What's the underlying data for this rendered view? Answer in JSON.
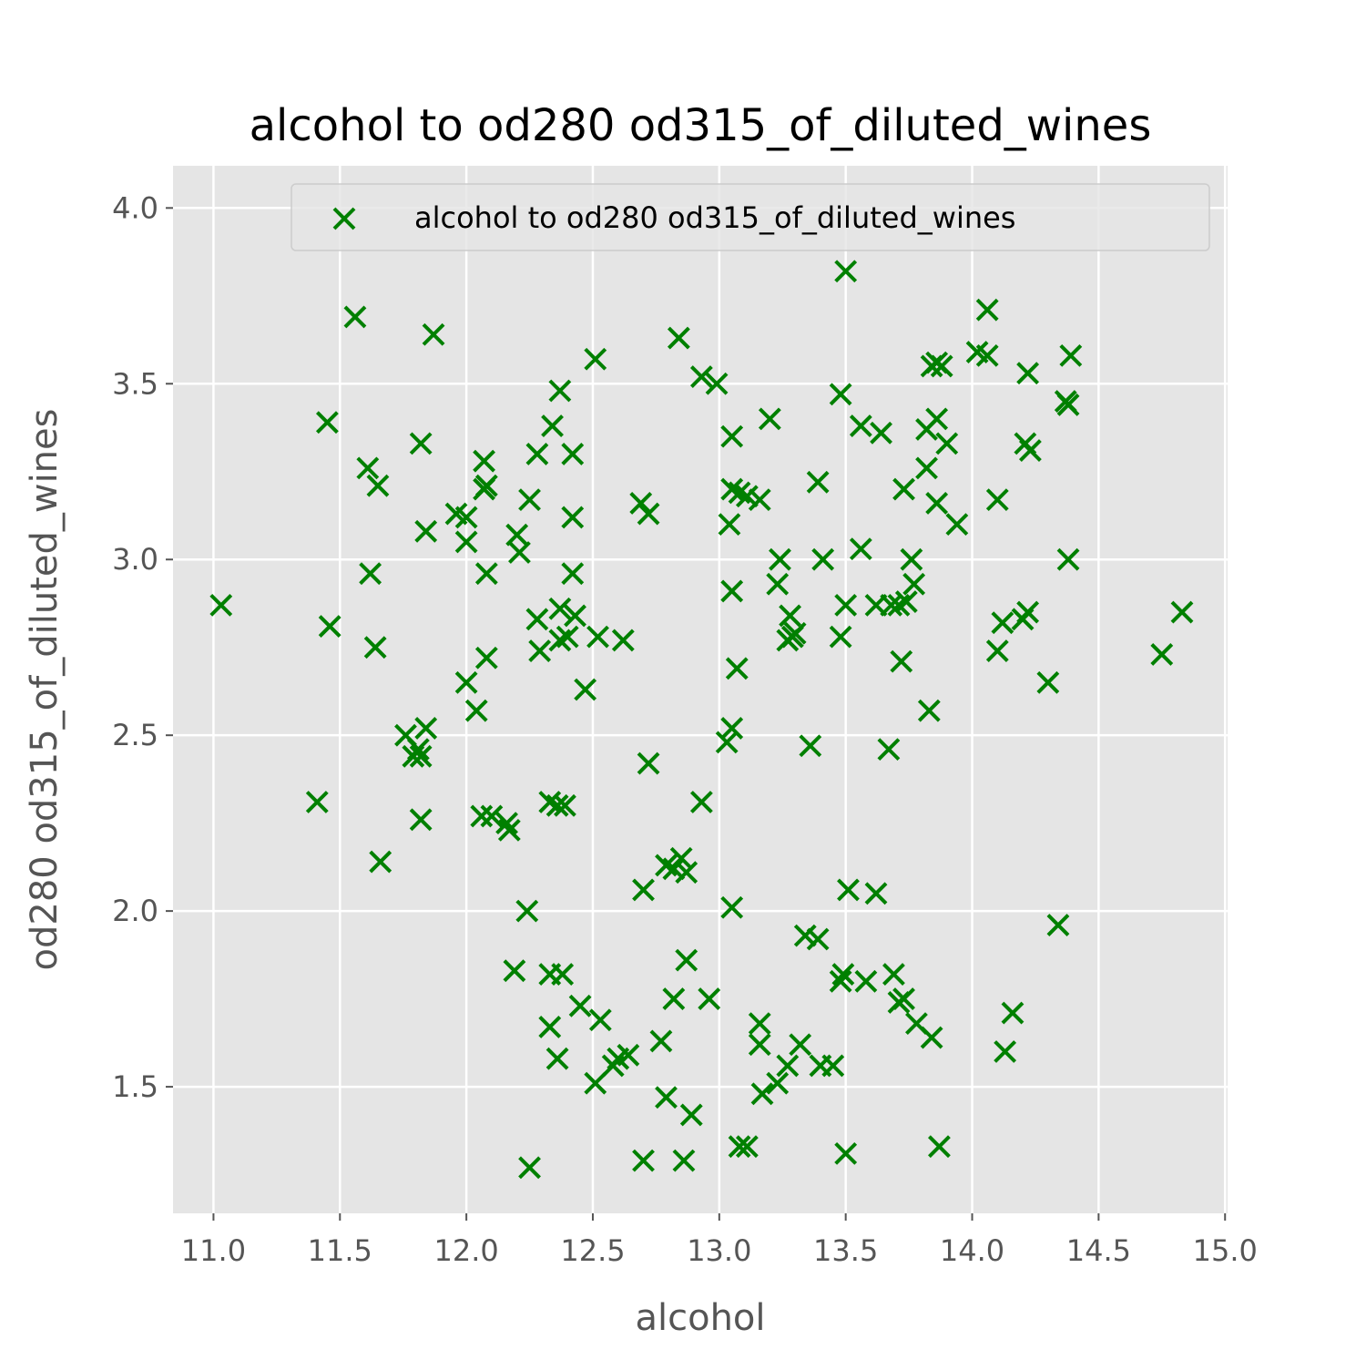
{
  "chart_data": {
    "type": "scatter",
    "title": "alcohol to od280 od315_of_diluted_wines",
    "xlabel": "alcohol",
    "ylabel": "od280 od315_of_diluted_wines",
    "xlim": [
      10.84,
      15.01
    ],
    "ylim": [
      1.14,
      4.12
    ],
    "x_ticks": [
      11.0,
      11.5,
      12.0,
      12.5,
      13.0,
      13.5,
      14.0,
      14.5,
      15.0
    ],
    "x_tick_labels": [
      "11.0",
      "11.5",
      "12.0",
      "12.5",
      "13.0",
      "13.5",
      "14.0",
      "14.5",
      "15.0"
    ],
    "y_ticks": [
      1.5,
      2.0,
      2.5,
      3.0,
      3.5,
      4.0
    ],
    "y_tick_labels": [
      "1.5",
      "2.0",
      "2.5",
      "3.0",
      "3.5",
      "4.0"
    ],
    "grid": true,
    "background": "#e5e5e5",
    "marker": "x",
    "legend": {
      "position": "upper right"
    },
    "series": [
      {
        "name": "alcohol to od280 od315_of_diluted_wines",
        "color": "#008000",
        "points": [
          [
            11.03,
            2.87
          ],
          [
            11.41,
            2.31
          ],
          [
            11.45,
            3.39
          ],
          [
            11.46,
            2.81
          ],
          [
            11.56,
            3.69
          ],
          [
            11.61,
            3.26
          ],
          [
            11.62,
            2.96
          ],
          [
            11.64,
            2.75
          ],
          [
            11.65,
            3.21
          ],
          [
            11.66,
            2.14
          ],
          [
            11.76,
            2.5
          ],
          [
            11.79,
            2.44
          ],
          [
            11.81,
            2.46
          ],
          [
            11.82,
            2.44
          ],
          [
            11.82,
            2.26
          ],
          [
            11.82,
            3.33
          ],
          [
            11.84,
            2.52
          ],
          [
            11.84,
            3.08
          ],
          [
            11.87,
            3.64
          ],
          [
            11.96,
            3.13
          ],
          [
            12.0,
            3.12
          ],
          [
            12.0,
            3.05
          ],
          [
            12.0,
            2.65
          ],
          [
            12.04,
            2.57
          ],
          [
            12.06,
            2.27
          ],
          [
            12.07,
            3.2
          ],
          [
            12.07,
            3.28
          ],
          [
            12.08,
            2.96
          ],
          [
            12.08,
            2.72
          ],
          [
            12.08,
            3.21
          ],
          [
            12.1,
            2.27
          ],
          [
            12.16,
            2.25
          ],
          [
            12.17,
            2.23
          ],
          [
            12.2,
            3.07
          ],
          [
            12.21,
            3.02
          ],
          [
            12.19,
            1.83
          ],
          [
            12.24,
            2.0
          ],
          [
            12.25,
            3.17
          ],
          [
            12.25,
            1.27
          ],
          [
            12.28,
            2.83
          ],
          [
            12.28,
            3.3
          ],
          [
            12.29,
            2.74
          ],
          [
            12.33,
            1.82
          ],
          [
            12.33,
            1.67
          ],
          [
            12.33,
            2.31
          ],
          [
            12.34,
            3.38
          ],
          [
            12.36,
            2.3
          ],
          [
            12.36,
            1.58
          ],
          [
            12.37,
            3.48
          ],
          [
            12.37,
            2.86
          ],
          [
            12.37,
            2.77
          ],
          [
            12.38,
            1.82
          ],
          [
            12.39,
            2.3
          ],
          [
            12.4,
            2.78
          ],
          [
            12.42,
            3.3
          ],
          [
            12.42,
            3.12
          ],
          [
            12.42,
            2.96
          ],
          [
            12.43,
            2.84
          ],
          [
            12.45,
            1.73
          ],
          [
            12.47,
            2.63
          ],
          [
            12.51,
            3.57
          ],
          [
            12.51,
            1.51
          ],
          [
            12.52,
            2.78
          ],
          [
            12.53,
            1.69
          ],
          [
            12.58,
            1.56
          ],
          [
            12.6,
            1.58
          ],
          [
            12.62,
            2.77
          ],
          [
            12.64,
            1.59
          ],
          [
            12.69,
            3.16
          ],
          [
            12.7,
            1.29
          ],
          [
            12.7,
            2.06
          ],
          [
            12.72,
            3.13
          ],
          [
            12.72,
            2.42
          ],
          [
            12.77,
            1.63
          ],
          [
            12.79,
            2.13
          ],
          [
            12.79,
            1.47
          ],
          [
            12.82,
            1.75
          ],
          [
            12.82,
            2.12
          ],
          [
            12.84,
            3.63
          ],
          [
            12.85,
            2.15
          ],
          [
            12.86,
            1.29
          ],
          [
            12.87,
            1.86
          ],
          [
            12.87,
            2.11
          ],
          [
            12.89,
            1.42
          ],
          [
            12.93,
            3.52
          ],
          [
            12.93,
            2.31
          ],
          [
            12.96,
            1.75
          ],
          [
            12.99,
            3.5
          ],
          [
            13.03,
            2.48
          ],
          [
            13.04,
            3.1
          ],
          [
            13.05,
            2.01
          ],
          [
            13.05,
            3.35
          ],
          [
            13.05,
            2.52
          ],
          [
            13.05,
            2.91
          ],
          [
            13.05,
            3.2
          ],
          [
            13.07,
            2.69
          ],
          [
            13.08,
            3.19
          ],
          [
            13.08,
            1.33
          ],
          [
            13.11,
            1.33
          ],
          [
            13.11,
            3.18
          ],
          [
            13.16,
            3.17
          ],
          [
            13.16,
            1.68
          ],
          [
            13.16,
            1.62
          ],
          [
            13.17,
            1.48
          ],
          [
            13.2,
            3.4
          ],
          [
            13.23,
            1.51
          ],
          [
            13.23,
            2.93
          ],
          [
            13.24,
            3.0
          ],
          [
            13.27,
            1.56
          ],
          [
            13.27,
            2.77
          ],
          [
            13.28,
            2.84
          ],
          [
            13.29,
            2.78
          ],
          [
            13.3,
            2.79
          ],
          [
            13.32,
            1.62
          ],
          [
            13.34,
            1.93
          ],
          [
            13.36,
            2.47
          ],
          [
            13.39,
            3.22
          ],
          [
            13.39,
            1.92
          ],
          [
            13.4,
            1.56
          ],
          [
            13.41,
            3.0
          ],
          [
            13.45,
            1.56
          ],
          [
            13.48,
            1.8
          ],
          [
            13.48,
            3.47
          ],
          [
            13.48,
            2.78
          ],
          [
            13.49,
            1.82
          ],
          [
            13.5,
            3.82
          ],
          [
            13.5,
            1.31
          ],
          [
            13.5,
            2.87
          ],
          [
            13.51,
            2.06
          ],
          [
            13.56,
            3.38
          ],
          [
            13.56,
            3.03
          ],
          [
            13.58,
            1.8
          ],
          [
            13.62,
            2.87
          ],
          [
            13.62,
            2.05
          ],
          [
            13.64,
            3.36
          ],
          [
            13.67,
            2.46
          ],
          [
            13.68,
            2.87
          ],
          [
            13.69,
            1.82
          ],
          [
            13.71,
            2.87
          ],
          [
            13.71,
            1.74
          ],
          [
            13.72,
            2.71
          ],
          [
            13.73,
            1.75
          ],
          [
            13.73,
            3.2
          ],
          [
            13.74,
            2.88
          ],
          [
            13.76,
            3.0
          ],
          [
            13.77,
            2.93
          ],
          [
            13.78,
            1.68
          ],
          [
            13.82,
            3.26
          ],
          [
            13.82,
            3.37
          ],
          [
            13.83,
            2.57
          ],
          [
            13.84,
            1.64
          ],
          [
            13.84,
            3.55
          ],
          [
            13.86,
            3.56
          ],
          [
            13.86,
            3.16
          ],
          [
            13.86,
            3.4
          ],
          [
            13.87,
            1.33
          ],
          [
            13.88,
            3.55
          ],
          [
            13.9,
            3.33
          ],
          [
            13.94,
            3.1
          ],
          [
            14.02,
            3.59
          ],
          [
            14.06,
            3.71
          ],
          [
            14.06,
            3.58
          ],
          [
            14.1,
            2.74
          ],
          [
            14.1,
            3.17
          ],
          [
            14.12,
            2.82
          ],
          [
            14.13,
            1.6
          ],
          [
            14.16,
            1.71
          ],
          [
            14.2,
            2.83
          ],
          [
            14.21,
            3.33
          ],
          [
            14.22,
            2.85
          ],
          [
            14.22,
            3.53
          ],
          [
            14.23,
            3.31
          ],
          [
            14.3,
            2.65
          ],
          [
            14.34,
            1.96
          ],
          [
            14.37,
            3.45
          ],
          [
            14.38,
            3.44
          ],
          [
            14.38,
            3.0
          ],
          [
            14.39,
            3.58
          ],
          [
            14.75,
            2.73
          ],
          [
            14.83,
            2.85
          ]
        ]
      }
    ]
  }
}
